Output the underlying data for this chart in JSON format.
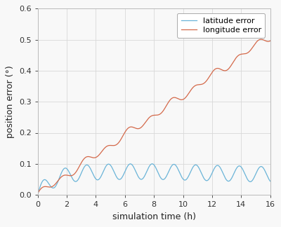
{
  "title": "",
  "xlabel": "simulation time (h)",
  "ylabel": "position error (°)",
  "xlim": [
    0,
    16
  ],
  "ylim": [
    0,
    0.6
  ],
  "xticks": [
    0,
    2,
    4,
    6,
    8,
    10,
    12,
    14,
    16
  ],
  "yticks": [
    0.0,
    0.1,
    0.2,
    0.3,
    0.4,
    0.5,
    0.6
  ],
  "legend_labels": [
    "latitude error",
    "longitude error"
  ],
  "lat_color": "#6ab4d8",
  "lon_color": "#d4694a",
  "background_color": "#f8f8f8",
  "grid_color": "#d8d8d8",
  "spine_color": "#bbbbbb",
  "linewidth": 0.9,
  "n_points": 2000
}
